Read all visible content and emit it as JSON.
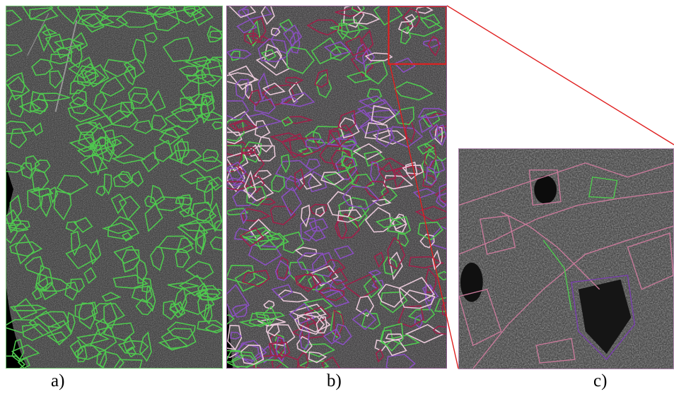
{
  "figure": {
    "panels": [
      {
        "id": "a",
        "caption": "a)",
        "outline_color": "#4fc94f"
      },
      {
        "id": "b",
        "caption": "b)",
        "outline_colors": [
          "#a0204a",
          "#8a4fc0",
          "#4fc94f",
          "#e8c8d8"
        ]
      },
      {
        "id": "c",
        "caption": "c)",
        "outline_colors": [
          "#c87a9a",
          "#4fc94f",
          "#7a3fb0"
        ]
      }
    ],
    "zoom_indicator_color": "#e02020"
  }
}
